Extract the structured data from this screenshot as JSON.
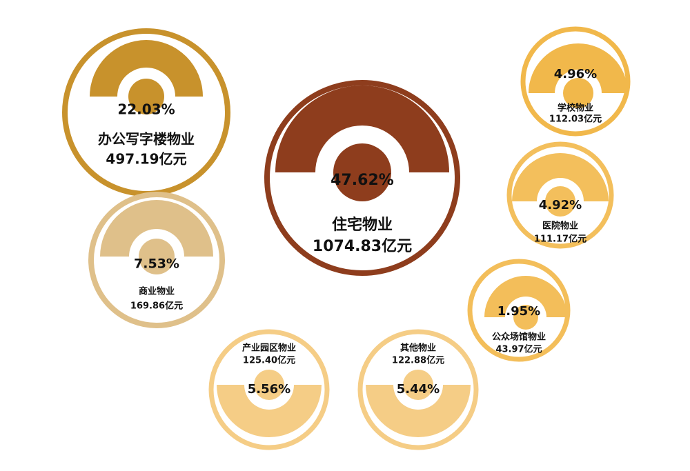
{
  "items": [
    {
      "name": "办公写字楼物业",
      "share": "22.03%",
      "amount": "497.19亿元"
    },
    {
      "name": "住宅物业",
      "share": "47.62%",
      "amount": "1074.83亿元"
    },
    {
      "name": "商业物业",
      "share": "7.53%",
      "amount": "169.86亿元"
    },
    {
      "name": "学校物业",
      "share": "4.96%",
      "amount": "112.03亿元"
    },
    {
      "name": "医院物业",
      "share": "4.92%",
      "amount": "111.17亿元"
    },
    {
      "name": "公众场馆物业",
      "share": "1.95%",
      "amount": "43.97亿元"
    },
    {
      "name": "产业园区物业",
      "share": "5.56%",
      "amount": "125.40亿元"
    },
    {
      "name": "其他物业",
      "share": "5.44%",
      "amount": "122.88亿元"
    }
  ]
}
